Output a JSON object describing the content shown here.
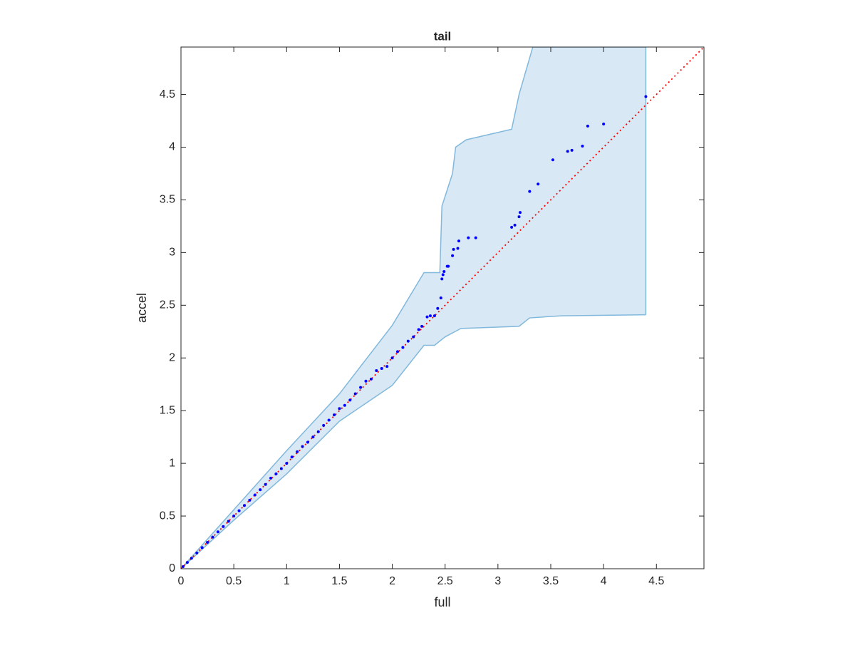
{
  "chart_data": {
    "type": "scatter",
    "title": "tail",
    "xlabel": "full",
    "ylabel": "accel",
    "xlim": [
      0,
      4.95
    ],
    "ylim": [
      0,
      4.95
    ],
    "xticks": [
      0,
      0.5,
      1,
      1.5,
      2,
      2.5,
      3,
      3.5,
      4,
      4.5
    ],
    "yticks": [
      0,
      0.5,
      1,
      1.5,
      2,
      2.5,
      3,
      3.5,
      4,
      4.5
    ],
    "series": [
      {
        "color": "#0000ff",
        "x": [
          0.02,
          0.06,
          0.1,
          0.15,
          0.2,
          0.25,
          0.3,
          0.35,
          0.4,
          0.45,
          0.5,
          0.55,
          0.6,
          0.65,
          0.7,
          0.75,
          0.8,
          0.85,
          0.9,
          0.95,
          1.0,
          1.05,
          1.1,
          1.15,
          1.2,
          1.25,
          1.3,
          1.35,
          1.4,
          1.45,
          1.5,
          1.55,
          1.6,
          1.65,
          1.7,
          1.75,
          1.8,
          1.85,
          1.9,
          1.95,
          2.0,
          2.05,
          2.1,
          2.15,
          2.2,
          2.25,
          2.28,
          2.33,
          2.36,
          2.4,
          2.43,
          2.46,
          2.47,
          2.48,
          2.49,
          2.52,
          2.53,
          2.57,
          2.58,
          2.62,
          2.63,
          2.72,
          2.79,
          3.13,
          3.16,
          3.2,
          3.21,
          3.3,
          3.38,
          3.52,
          3.66,
          3.7,
          3.8,
          3.85,
          4.0,
          4.4
        ],
        "y": [
          0.02,
          0.06,
          0.1,
          0.15,
          0.2,
          0.25,
          0.3,
          0.35,
          0.4,
          0.45,
          0.5,
          0.55,
          0.6,
          0.65,
          0.7,
          0.75,
          0.8,
          0.86,
          0.9,
          0.95,
          1.0,
          1.06,
          1.11,
          1.16,
          1.2,
          1.25,
          1.3,
          1.36,
          1.41,
          1.46,
          1.52,
          1.55,
          1.6,
          1.66,
          1.72,
          1.78,
          1.8,
          1.88,
          1.9,
          1.92,
          2.0,
          2.06,
          2.1,
          2.16,
          2.2,
          2.27,
          2.3,
          2.39,
          2.4,
          2.4,
          2.47,
          2.57,
          2.75,
          2.79,
          2.82,
          2.87,
          2.87,
          2.97,
          3.03,
          3.04,
          3.11,
          3.14,
          3.14,
          3.24,
          3.26,
          3.34,
          3.38,
          3.58,
          3.65,
          3.88,
          3.96,
          3.97,
          4.01,
          4.2,
          4.22,
          4.48
        ]
      }
    ],
    "band": {
      "color": "#d8e8f4",
      "edge_color": "#82b8db",
      "upper": {
        "x": [
          0,
          0.5,
          1,
          1.5,
          2,
          2.3,
          2.45,
          2.47,
          2.57,
          2.6,
          2.7,
          3.13,
          3.2,
          3.33,
          4.4
        ],
        "y": [
          0,
          0.56,
          1.12,
          1.66,
          2.31,
          2.81,
          2.81,
          3.44,
          3.75,
          4.0,
          4.07,
          4.17,
          4.5,
          4.95,
          4.95
        ]
      },
      "lower": {
        "x": [
          0,
          0.5,
          1,
          1.5,
          2,
          2.3,
          2.4,
          2.5,
          2.65,
          3.2,
          3.3,
          3.6,
          4.4
        ],
        "y": [
          0,
          0.46,
          0.9,
          1.4,
          1.74,
          2.12,
          2.12,
          2.2,
          2.28,
          2.3,
          2.38,
          2.4,
          2.41
        ]
      }
    },
    "reference_line": {
      "color": "#ff0000",
      "x": [
        0,
        4.95
      ],
      "y": [
        0,
        4.95
      ]
    }
  }
}
